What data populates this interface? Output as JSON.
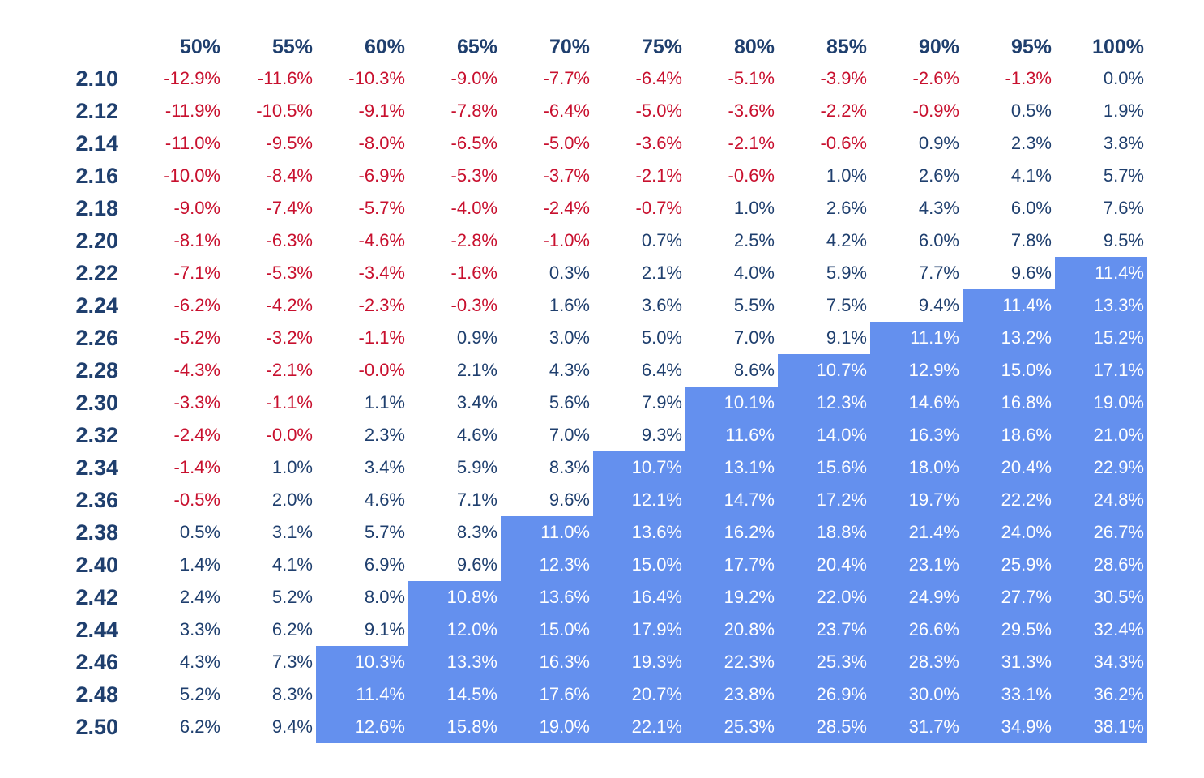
{
  "chart_data": {
    "type": "table",
    "column_headers": [
      "50%",
      "55%",
      "60%",
      "65%",
      "70%",
      "75%",
      "80%",
      "85%",
      "90%",
      "95%",
      "100%"
    ],
    "row_headers": [
      "2.10",
      "2.12",
      "2.14",
      "2.16",
      "2.18",
      "2.20",
      "2.22",
      "2.24",
      "2.26",
      "2.28",
      "2.30",
      "2.32",
      "2.34",
      "2.36",
      "2.38",
      "2.40",
      "2.42",
      "2.44",
      "2.46",
      "2.48",
      "2.50"
    ],
    "cells": [
      [
        "-12.9%",
        "-11.6%",
        "-10.3%",
        "-9.0%",
        "-7.7%",
        "-6.4%",
        "-5.1%",
        "-3.9%",
        "-2.6%",
        "-1.3%",
        "0.0%"
      ],
      [
        "-11.9%",
        "-10.5%",
        "-9.1%",
        "-7.8%",
        "-6.4%",
        "-5.0%",
        "-3.6%",
        "-2.2%",
        "-0.9%",
        "0.5%",
        "1.9%"
      ],
      [
        "-11.0%",
        "-9.5%",
        "-8.0%",
        "-6.5%",
        "-5.0%",
        "-3.6%",
        "-2.1%",
        "-0.6%",
        "0.9%",
        "2.3%",
        "3.8%"
      ],
      [
        "-10.0%",
        "-8.4%",
        "-6.9%",
        "-5.3%",
        "-3.7%",
        "-2.1%",
        "-0.6%",
        "1.0%",
        "2.6%",
        "4.1%",
        "5.7%"
      ],
      [
        "-9.0%",
        "-7.4%",
        "-5.7%",
        "-4.0%",
        "-2.4%",
        "-0.7%",
        "1.0%",
        "2.6%",
        "4.3%",
        "6.0%",
        "7.6%"
      ],
      [
        "-8.1%",
        "-6.3%",
        "-4.6%",
        "-2.8%",
        "-1.0%",
        "0.7%",
        "2.5%",
        "4.2%",
        "6.0%",
        "7.8%",
        "9.5%"
      ],
      [
        "-7.1%",
        "-5.3%",
        "-3.4%",
        "-1.6%",
        "0.3%",
        "2.1%",
        "4.0%",
        "5.9%",
        "7.7%",
        "9.6%",
        "11.4%"
      ],
      [
        "-6.2%",
        "-4.2%",
        "-2.3%",
        "-0.3%",
        "1.6%",
        "3.6%",
        "5.5%",
        "7.5%",
        "9.4%",
        "11.4%",
        "13.3%"
      ],
      [
        "-5.2%",
        "-3.2%",
        "-1.1%",
        "0.9%",
        "3.0%",
        "5.0%",
        "7.0%",
        "9.1%",
        "11.1%",
        "13.2%",
        "15.2%"
      ],
      [
        "-4.3%",
        "-2.1%",
        "-0.0%",
        "2.1%",
        "4.3%",
        "6.4%",
        "8.6%",
        "10.7%",
        "12.9%",
        "15.0%",
        "17.1%"
      ],
      [
        "-3.3%",
        "-1.1%",
        "1.1%",
        "3.4%",
        "5.6%",
        "7.9%",
        "10.1%",
        "12.3%",
        "14.6%",
        "16.8%",
        "19.0%"
      ],
      [
        "-2.4%",
        "-0.0%",
        "2.3%",
        "4.6%",
        "7.0%",
        "9.3%",
        "11.6%",
        "14.0%",
        "16.3%",
        "18.6%",
        "21.0%"
      ],
      [
        "-1.4%",
        "1.0%",
        "3.4%",
        "5.9%",
        "8.3%",
        "10.7%",
        "13.1%",
        "15.6%",
        "18.0%",
        "20.4%",
        "22.9%"
      ],
      [
        "-0.5%",
        "2.0%",
        "4.6%",
        "7.1%",
        "9.6%",
        "12.1%",
        "14.7%",
        "17.2%",
        "19.7%",
        "22.2%",
        "24.8%"
      ],
      [
        "0.5%",
        "3.1%",
        "5.7%",
        "8.3%",
        "11.0%",
        "13.6%",
        "16.2%",
        "18.8%",
        "21.4%",
        "24.0%",
        "26.7%"
      ],
      [
        "1.4%",
        "4.1%",
        "6.9%",
        "9.6%",
        "12.3%",
        "15.0%",
        "17.7%",
        "20.4%",
        "23.1%",
        "25.9%",
        "28.6%"
      ],
      [
        "2.4%",
        "5.2%",
        "8.0%",
        "10.8%",
        "13.6%",
        "16.4%",
        "19.2%",
        "22.0%",
        "24.9%",
        "27.7%",
        "30.5%"
      ],
      [
        "3.3%",
        "6.2%",
        "9.1%",
        "12.0%",
        "15.0%",
        "17.9%",
        "20.8%",
        "23.7%",
        "26.6%",
        "29.5%",
        "32.4%"
      ],
      [
        "4.3%",
        "7.3%",
        "10.3%",
        "13.3%",
        "16.3%",
        "19.3%",
        "22.3%",
        "25.3%",
        "28.3%",
        "31.3%",
        "34.3%"
      ],
      [
        "5.2%",
        "8.3%",
        "11.4%",
        "14.5%",
        "17.6%",
        "20.7%",
        "23.8%",
        "26.9%",
        "30.0%",
        "33.1%",
        "36.2%"
      ],
      [
        "6.2%",
        "9.4%",
        "12.6%",
        "15.8%",
        "19.0%",
        "22.1%",
        "25.3%",
        "28.5%",
        "31.7%",
        "34.9%",
        "38.1%"
      ]
    ],
    "highlight_threshold_percent": 10,
    "colors": {
      "negative_text": "#c8102e",
      "positive_text": "#1f3f6e",
      "header_text": "#1f3f6e",
      "highlight_fill": "#6490ee",
      "highlight_text": "#ffffff"
    }
  }
}
